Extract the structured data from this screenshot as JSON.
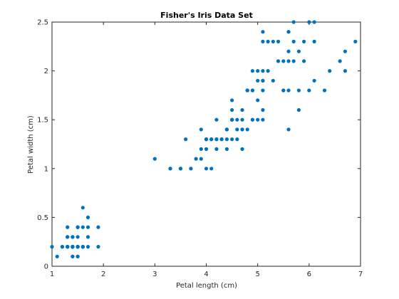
{
  "chart_data": {
    "type": "scatter",
    "title": "Fisher's Iris Data Set",
    "xlabel": "Petal length (cm)",
    "ylabel": "Petal width (cm)",
    "xlim": [
      1,
      7
    ],
    "ylim": [
      0,
      2.5
    ],
    "xticks": [
      1,
      2,
      3,
      4,
      5,
      6,
      7
    ],
    "xtick_labels": [
      "1",
      "2",
      "3",
      "4",
      "5",
      "6",
      "7"
    ],
    "yticks": [
      0,
      0.5,
      1,
      1.5,
      2,
      2.5
    ],
    "ytick_labels": [
      "0",
      "0.5",
      "1",
      "1.5",
      "2",
      "2.5"
    ],
    "grid": false,
    "marker_color": "#0072BD",
    "series": [
      {
        "points": [
          [
            1.4,
            0.2
          ],
          [
            1.4,
            0.2
          ],
          [
            1.3,
            0.2
          ],
          [
            1.5,
            0.2
          ],
          [
            1.4,
            0.2
          ],
          [
            1.7,
            0.4
          ],
          [
            1.4,
            0.3
          ],
          [
            1.5,
            0.2
          ],
          [
            1.4,
            0.2
          ],
          [
            1.5,
            0.1
          ],
          [
            1.5,
            0.2
          ],
          [
            1.6,
            0.2
          ],
          [
            1.4,
            0.1
          ],
          [
            1.1,
            0.1
          ],
          [
            1.2,
            0.2
          ],
          [
            1.5,
            0.4
          ],
          [
            1.3,
            0.4
          ],
          [
            1.4,
            0.3
          ],
          [
            1.7,
            0.3
          ],
          [
            1.5,
            0.3
          ],
          [
            1.7,
            0.2
          ],
          [
            1.5,
            0.4
          ],
          [
            1.0,
            0.2
          ],
          [
            1.7,
            0.5
          ],
          [
            1.9,
            0.2
          ],
          [
            1.6,
            0.2
          ],
          [
            1.6,
            0.4
          ],
          [
            1.5,
            0.2
          ],
          [
            1.4,
            0.2
          ],
          [
            1.6,
            0.2
          ],
          [
            1.6,
            0.2
          ],
          [
            1.5,
            0.4
          ],
          [
            1.5,
            0.1
          ],
          [
            1.4,
            0.2
          ],
          [
            1.5,
            0.2
          ],
          [
            1.2,
            0.2
          ],
          [
            1.3,
            0.2
          ],
          [
            1.4,
            0.1
          ],
          [
            1.3,
            0.2
          ],
          [
            1.5,
            0.2
          ],
          [
            1.3,
            0.3
          ],
          [
            1.3,
            0.3
          ],
          [
            1.3,
            0.2
          ],
          [
            1.6,
            0.6
          ],
          [
            1.9,
            0.4
          ],
          [
            1.4,
            0.3
          ],
          [
            1.6,
            0.2
          ],
          [
            1.4,
            0.2
          ],
          [
            1.5,
            0.2
          ],
          [
            1.4,
            0.2
          ],
          [
            4.7,
            1.4
          ],
          [
            4.5,
            1.5
          ],
          [
            4.9,
            1.5
          ],
          [
            4.0,
            1.3
          ],
          [
            4.6,
            1.5
          ],
          [
            4.5,
            1.3
          ],
          [
            4.7,
            1.6
          ],
          [
            3.3,
            1.0
          ],
          [
            4.6,
            1.3
          ],
          [
            3.9,
            1.4
          ],
          [
            3.5,
            1.0
          ],
          [
            4.2,
            1.5
          ],
          [
            4.0,
            1.0
          ],
          [
            4.7,
            1.4
          ],
          [
            3.6,
            1.3
          ],
          [
            4.4,
            1.4
          ],
          [
            4.5,
            1.5
          ],
          [
            4.1,
            1.0
          ],
          [
            4.5,
            1.5
          ],
          [
            3.9,
            1.1
          ],
          [
            4.8,
            1.8
          ],
          [
            4.0,
            1.3
          ],
          [
            4.9,
            1.5
          ],
          [
            4.7,
            1.2
          ],
          [
            4.3,
            1.3
          ],
          [
            4.4,
            1.4
          ],
          [
            4.8,
            1.4
          ],
          [
            5.0,
            1.7
          ],
          [
            4.5,
            1.5
          ],
          [
            3.5,
            1.0
          ],
          [
            3.8,
            1.1
          ],
          [
            3.7,
            1.0
          ],
          [
            3.9,
            1.2
          ],
          [
            5.1,
            1.6
          ],
          [
            4.5,
            1.5
          ],
          [
            4.5,
            1.6
          ],
          [
            4.7,
            1.5
          ],
          [
            4.4,
            1.3
          ],
          [
            4.1,
            1.3
          ],
          [
            4.0,
            1.3
          ],
          [
            4.4,
            1.2
          ],
          [
            4.6,
            1.4
          ],
          [
            4.0,
            1.2
          ],
          [
            3.3,
            1.0
          ],
          [
            4.2,
            1.3
          ],
          [
            4.2,
            1.2
          ],
          [
            4.2,
            1.3
          ],
          [
            4.3,
            1.3
          ],
          [
            3.0,
            1.1
          ],
          [
            4.1,
            1.3
          ],
          [
            6.0,
            2.5
          ],
          [
            5.1,
            1.9
          ],
          [
            5.9,
            2.1
          ],
          [
            5.6,
            1.8
          ],
          [
            5.8,
            2.2
          ],
          [
            6.6,
            2.1
          ],
          [
            4.5,
            1.7
          ],
          [
            6.3,
            1.8
          ],
          [
            5.8,
            1.8
          ],
          [
            6.1,
            2.5
          ],
          [
            5.1,
            2.0
          ],
          [
            5.3,
            1.9
          ],
          [
            5.5,
            2.1
          ],
          [
            5.0,
            2.0
          ],
          [
            5.1,
            2.4
          ],
          [
            5.3,
            2.3
          ],
          [
            5.5,
            1.8
          ],
          [
            6.7,
            2.2
          ],
          [
            6.9,
            2.3
          ],
          [
            5.0,
            1.5
          ],
          [
            5.7,
            2.3
          ],
          [
            4.9,
            2.0
          ],
          [
            6.7,
            2.0
          ],
          [
            4.9,
            1.8
          ],
          [
            5.7,
            2.1
          ],
          [
            6.0,
            1.8
          ],
          [
            4.8,
            1.8
          ],
          [
            4.9,
            1.8
          ],
          [
            5.6,
            2.1
          ],
          [
            5.8,
            1.6
          ],
          [
            6.1,
            1.9
          ],
          [
            6.4,
            2.0
          ],
          [
            5.6,
            2.2
          ],
          [
            5.1,
            1.5
          ],
          [
            5.6,
            1.4
          ],
          [
            6.1,
            2.3
          ],
          [
            5.6,
            2.4
          ],
          [
            5.5,
            1.8
          ],
          [
            4.8,
            1.8
          ],
          [
            5.4,
            2.1
          ],
          [
            5.6,
            2.4
          ],
          [
            5.1,
            2.3
          ],
          [
            5.1,
            1.9
          ],
          [
            5.9,
            2.3
          ],
          [
            5.7,
            2.5
          ],
          [
            5.2,
            2.3
          ],
          [
            5.0,
            1.9
          ],
          [
            5.2,
            2.0
          ],
          [
            5.4,
            2.3
          ],
          [
            5.1,
            1.8
          ]
        ]
      }
    ]
  }
}
